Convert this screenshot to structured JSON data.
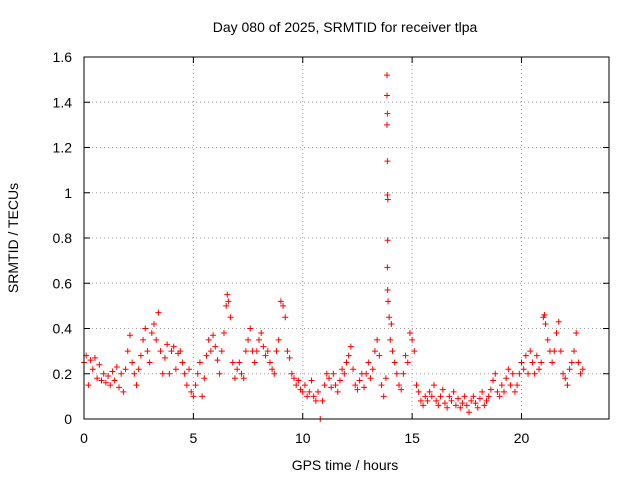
{
  "chart_data": {
    "type": "scatter",
    "title": "Day 080 of 2025, SRMTID for receiver tlpa",
    "xlabel": "GPS time / hours",
    "ylabel": "SRMTID / TECUs",
    "xlim": [
      0,
      24
    ],
    "ylim": [
      0,
      1.6
    ],
    "xticks": [
      0,
      5,
      10,
      15,
      20
    ],
    "yticks": [
      0,
      0.2,
      0.4,
      0.6,
      0.8,
      1,
      1.2,
      1.4,
      1.6
    ],
    "xtick_labels": [
      "0",
      "5",
      "10",
      "15",
      "20"
    ],
    "ytick_labels": [
      "0",
      "0.2",
      "0.4",
      "0.6",
      "0.8",
      "1",
      "1.2",
      "1.4",
      "1.6"
    ],
    "grid": true,
    "marker": "+",
    "marker_color": "#ff0000",
    "series": [
      {
        "name": "SRMTID",
        "points": [
          [
            0.0,
            0.25
          ],
          [
            0.1,
            0.28
          ],
          [
            0.2,
            0.15
          ],
          [
            0.3,
            0.26
          ],
          [
            0.4,
            0.22
          ],
          [
            0.5,
            0.27
          ],
          [
            0.6,
            0.18
          ],
          [
            0.7,
            0.24
          ],
          [
            0.8,
            0.17
          ],
          [
            0.9,
            0.2
          ],
          [
            1.0,
            0.16
          ],
          [
            1.1,
            0.19
          ],
          [
            1.2,
            0.15
          ],
          [
            1.3,
            0.21
          ],
          [
            1.4,
            0.17
          ],
          [
            1.5,
            0.23
          ],
          [
            1.6,
            0.14
          ],
          [
            1.7,
            0.2
          ],
          [
            1.8,
            0.12
          ],
          [
            1.9,
            0.22
          ],
          [
            2.0,
            0.3
          ],
          [
            2.1,
            0.37
          ],
          [
            2.2,
            0.25
          ],
          [
            2.3,
            0.2
          ],
          [
            2.4,
            0.15
          ],
          [
            2.5,
            0.22
          ],
          [
            2.6,
            0.28
          ],
          [
            2.7,
            0.35
          ],
          [
            2.8,
            0.4
          ],
          [
            2.9,
            0.3
          ],
          [
            3.0,
            0.25
          ],
          [
            3.1,
            0.38
          ],
          [
            3.2,
            0.42
          ],
          [
            3.3,
            0.35
          ],
          [
            3.4,
            0.47
          ],
          [
            3.5,
            0.3
          ],
          [
            3.6,
            0.2
          ],
          [
            3.7,
            0.27
          ],
          [
            3.8,
            0.33
          ],
          [
            3.9,
            0.2
          ],
          [
            4.0,
            0.3
          ],
          [
            4.1,
            0.32
          ],
          [
            4.2,
            0.22
          ],
          [
            4.3,
            0.29
          ],
          [
            4.4,
            0.3
          ],
          [
            4.5,
            0.25
          ],
          [
            4.6,
            0.2
          ],
          [
            4.7,
            0.15
          ],
          [
            4.8,
            0.22
          ],
          [
            4.9,
            0.12
          ],
          [
            5.0,
            0.1
          ],
          [
            5.1,
            0.15
          ],
          [
            5.2,
            0.2
          ],
          [
            5.3,
            0.25
          ],
          [
            5.4,
            0.1
          ],
          [
            5.5,
            0.18
          ],
          [
            5.6,
            0.28
          ],
          [
            5.7,
            0.35
          ],
          [
            5.8,
            0.3
          ],
          [
            5.9,
            0.37
          ],
          [
            6.0,
            0.32
          ],
          [
            6.1,
            0.26
          ],
          [
            6.2,
            0.2
          ],
          [
            6.3,
            0.3
          ],
          [
            6.4,
            0.38
          ],
          [
            6.5,
            0.5
          ],
          [
            6.55,
            0.55
          ],
          [
            6.6,
            0.52
          ],
          [
            6.7,
            0.45
          ],
          [
            6.8,
            0.25
          ],
          [
            6.9,
            0.18
          ],
          [
            7.0,
            0.22
          ],
          [
            7.1,
            0.25
          ],
          [
            7.2,
            0.2
          ],
          [
            7.3,
            0.18
          ],
          [
            7.4,
            0.3
          ],
          [
            7.5,
            0.35
          ],
          [
            7.6,
            0.4
          ],
          [
            7.7,
            0.3
          ],
          [
            7.8,
            0.25
          ],
          [
            7.9,
            0.3
          ],
          [
            8.0,
            0.35
          ],
          [
            8.1,
            0.38
          ],
          [
            8.2,
            0.32
          ],
          [
            8.3,
            0.28
          ],
          [
            8.4,
            0.3
          ],
          [
            8.5,
            0.25
          ],
          [
            8.6,
            0.22
          ],
          [
            8.7,
            0.2
          ],
          [
            8.8,
            0.3
          ],
          [
            8.9,
            0.35
          ],
          [
            9.0,
            0.52
          ],
          [
            9.1,
            0.5
          ],
          [
            9.2,
            0.45
          ],
          [
            9.3,
            0.3
          ],
          [
            9.4,
            0.27
          ],
          [
            9.5,
            0.2
          ],
          [
            9.6,
            0.18
          ],
          [
            9.7,
            0.15
          ],
          [
            9.8,
            0.17
          ],
          [
            9.9,
            0.13
          ],
          [
            10.0,
            0.12
          ],
          [
            10.1,
            0.15
          ],
          [
            10.2,
            0.1
          ],
          [
            10.3,
            0.12
          ],
          [
            10.4,
            0.17
          ],
          [
            10.5,
            0.1
          ],
          [
            10.6,
            0.08
          ],
          [
            10.7,
            0.12
          ],
          [
            10.8,
            0.0
          ],
          [
            10.9,
            0.08
          ],
          [
            11.0,
            0.15
          ],
          [
            11.1,
            0.2
          ],
          [
            11.2,
            0.18
          ],
          [
            11.3,
            0.14
          ],
          [
            11.4,
            0.2
          ],
          [
            11.5,
            0.15
          ],
          [
            11.6,
            0.12
          ],
          [
            11.7,
            0.17
          ],
          [
            11.8,
            0.22
          ],
          [
            11.9,
            0.2
          ],
          [
            12.0,
            0.25
          ],
          [
            12.1,
            0.28
          ],
          [
            12.2,
            0.32
          ],
          [
            12.3,
            0.22
          ],
          [
            12.4,
            0.15
          ],
          [
            12.5,
            0.13
          ],
          [
            12.6,
            0.17
          ],
          [
            12.7,
            0.2
          ],
          [
            12.8,
            0.14
          ],
          [
            12.9,
            0.2
          ],
          [
            13.0,
            0.25
          ],
          [
            13.1,
            0.18
          ],
          [
            13.2,
            0.22
          ],
          [
            13.3,
            0.3
          ],
          [
            13.4,
            0.35
          ],
          [
            13.5,
            0.28
          ],
          [
            13.6,
            0.15
          ],
          [
            13.7,
            0.1
          ],
          [
            13.8,
            0.18
          ],
          [
            13.85,
            1.52
          ],
          [
            13.85,
            1.43
          ],
          [
            13.87,
            1.35
          ],
          [
            13.85,
            1.3
          ],
          [
            13.87,
            1.14
          ],
          [
            13.87,
            0.99
          ],
          [
            13.89,
            0.97
          ],
          [
            13.88,
            0.79
          ],
          [
            13.87,
            0.67
          ],
          [
            13.88,
            0.57
          ],
          [
            13.9,
            0.52
          ],
          [
            13.95,
            0.45
          ],
          [
            14.0,
            0.35
          ],
          [
            14.05,
            0.42
          ],
          [
            14.1,
            0.3
          ],
          [
            14.2,
            0.25
          ],
          [
            14.3,
            0.2
          ],
          [
            14.4,
            0.15
          ],
          [
            14.5,
            0.13
          ],
          [
            14.6,
            0.2
          ],
          [
            14.7,
            0.28
          ],
          [
            14.8,
            0.25
          ],
          [
            14.9,
            0.38
          ],
          [
            15.0,
            0.35
          ],
          [
            15.1,
            0.3
          ],
          [
            15.2,
            0.15
          ],
          [
            15.3,
            0.12
          ],
          [
            15.4,
            0.08
          ],
          [
            15.5,
            0.06
          ],
          [
            15.6,
            0.1
          ],
          [
            15.7,
            0.08
          ],
          [
            15.8,
            0.12
          ],
          [
            15.9,
            0.1
          ],
          [
            16.0,
            0.15
          ],
          [
            16.1,
            0.08
          ],
          [
            16.2,
            0.06
          ],
          [
            16.3,
            0.1
          ],
          [
            16.4,
            0.13
          ],
          [
            16.5,
            0.07
          ],
          [
            16.6,
            0.05
          ],
          [
            16.7,
            0.1
          ],
          [
            16.8,
            0.08
          ],
          [
            16.9,
            0.12
          ],
          [
            17.0,
            0.06
          ],
          [
            17.1,
            0.09
          ],
          [
            17.2,
            0.05
          ],
          [
            17.3,
            0.07
          ],
          [
            17.4,
            0.1
          ],
          [
            17.5,
            0.06
          ],
          [
            17.6,
            0.03
          ],
          [
            17.7,
            0.08
          ],
          [
            17.8,
            0.1
          ],
          [
            17.9,
            0.07
          ],
          [
            18.0,
            0.05
          ],
          [
            18.1,
            0.09
          ],
          [
            18.2,
            0.12
          ],
          [
            18.3,
            0.06
          ],
          [
            18.4,
            0.08
          ],
          [
            18.5,
            0.1
          ],
          [
            18.6,
            0.13
          ],
          [
            18.7,
            0.17
          ],
          [
            18.8,
            0.2
          ],
          [
            18.9,
            0.12
          ],
          [
            19.0,
            0.1
          ],
          [
            19.1,
            0.15
          ],
          [
            19.2,
            0.12
          ],
          [
            19.3,
            0.18
          ],
          [
            19.4,
            0.22
          ],
          [
            19.5,
            0.15
          ],
          [
            19.6,
            0.2
          ],
          [
            19.7,
            0.12
          ],
          [
            19.8,
            0.15
          ],
          [
            19.9,
            0.2
          ],
          [
            20.0,
            0.25
          ],
          [
            20.1,
            0.22
          ],
          [
            20.2,
            0.28
          ],
          [
            20.3,
            0.2
          ],
          [
            20.4,
            0.3
          ],
          [
            20.5,
            0.25
          ],
          [
            20.6,
            0.2
          ],
          [
            20.7,
            0.28
          ],
          [
            20.8,
            0.22
          ],
          [
            20.9,
            0.25
          ],
          [
            21.0,
            0.45
          ],
          [
            21.05,
            0.46
          ],
          [
            21.1,
            0.42
          ],
          [
            21.2,
            0.35
          ],
          [
            21.3,
            0.3
          ],
          [
            21.4,
            0.25
          ],
          [
            21.5,
            0.3
          ],
          [
            21.6,
            0.38
          ],
          [
            21.7,
            0.43
          ],
          [
            21.8,
            0.3
          ],
          [
            21.9,
            0.2
          ],
          [
            22.0,
            0.18
          ],
          [
            22.1,
            0.15
          ],
          [
            22.2,
            0.22
          ],
          [
            22.3,
            0.25
          ],
          [
            22.4,
            0.3
          ],
          [
            22.5,
            0.38
          ],
          [
            22.6,
            0.25
          ],
          [
            22.7,
            0.2
          ],
          [
            22.8,
            0.22
          ]
        ]
      }
    ]
  }
}
